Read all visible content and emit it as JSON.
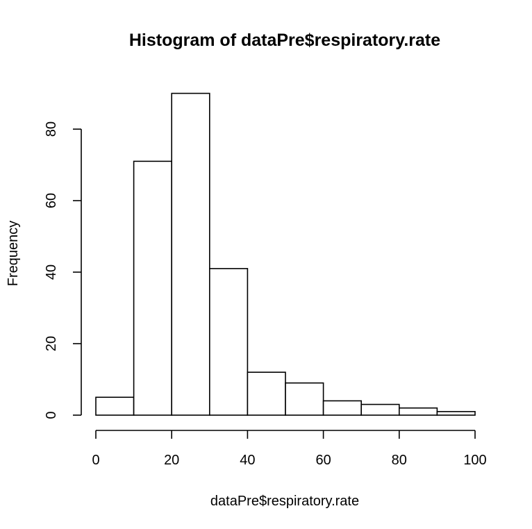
{
  "chart_data": {
    "type": "histogram",
    "title": "Histogram of dataPre$respiratory.rate",
    "xlabel": "dataPre$respiratory.rate",
    "ylabel": "Frequency",
    "bins": [
      {
        "start": 0,
        "end": 10,
        "count": 5
      },
      {
        "start": 10,
        "end": 20,
        "count": 71
      },
      {
        "start": 20,
        "end": 30,
        "count": 90
      },
      {
        "start": 30,
        "end": 40,
        "count": 41
      },
      {
        "start": 40,
        "end": 50,
        "count": 12
      },
      {
        "start": 50,
        "end": 60,
        "count": 9
      },
      {
        "start": 60,
        "end": 70,
        "count": 4
      },
      {
        "start": 70,
        "end": 80,
        "count": 3
      },
      {
        "start": 80,
        "end": 90,
        "count": 2
      },
      {
        "start": 90,
        "end": 100,
        "count": 1
      }
    ],
    "xlim": [
      0,
      100
    ],
    "ylim": [
      0,
      90
    ],
    "x_ticks": [
      0,
      20,
      40,
      60,
      80,
      100
    ],
    "y_ticks": [
      0,
      20,
      40,
      60,
      80
    ],
    "grid": false,
    "legend": "none",
    "colors": {
      "bar_fill": "#ffffff",
      "bar_stroke": "#000000"
    }
  }
}
